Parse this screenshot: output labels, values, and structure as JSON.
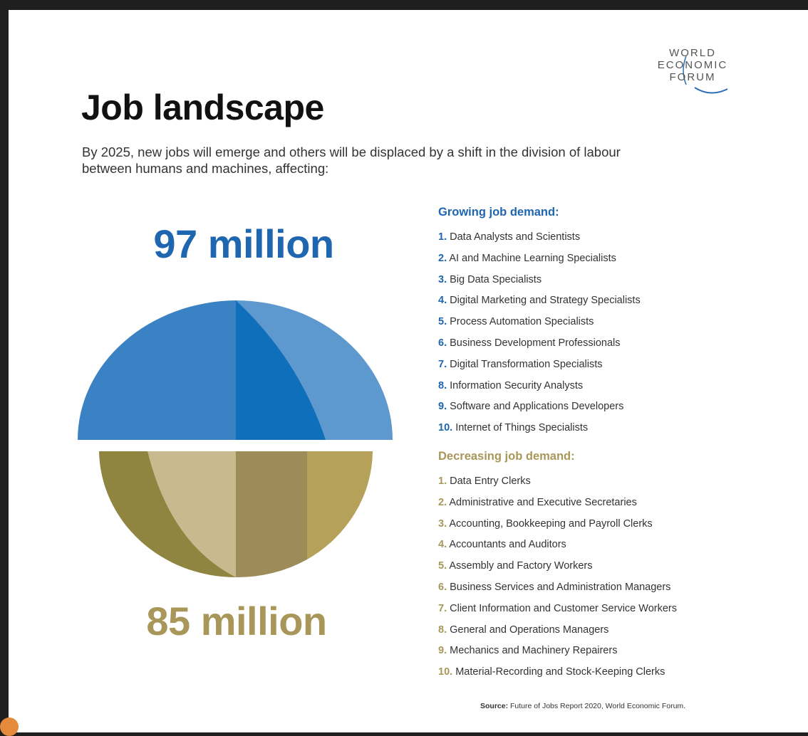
{
  "logo": {
    "lines": [
      "WORLD",
      "ECONOMIC",
      "FORUM"
    ],
    "colors": {
      "text": "#555555",
      "arc": "#2a6db5"
    }
  },
  "title": "Job landscape",
  "subtitle": "By 2025, new jobs will emerge and others will be displaced by a shift in the division of labour between humans and machines, affecting:",
  "figures": {
    "growing": "97 million",
    "decreasing": "85 million"
  },
  "colors": {
    "growing": "#1f66b0",
    "decreasing": "#a9975a",
    "blue_main": "#3b82c4",
    "blue_light": "#5d98cf",
    "blue_dark": "#0f6fba",
    "gold_dark": "#8f8440",
    "gold_light": "#c8b98f",
    "gold_mid": "#9d8b5a",
    "gold_bright": "#b5a15a"
  },
  "growing": {
    "heading": "Growing job demand:",
    "items": [
      {
        "num": "1.",
        "label": "Data Analysts and Scientists"
      },
      {
        "num": "2.",
        "label": "AI and Machine Learning Specialists"
      },
      {
        "num": "3.",
        "label": "Big Data Specialists"
      },
      {
        "num": "4.",
        "label": "Digital Marketing and Strategy Specialists"
      },
      {
        "num": "5.",
        "label": "Process Automation Specialists"
      },
      {
        "num": "6.",
        "label": "Business Development Professionals"
      },
      {
        "num": "7.",
        "label": "Digital Transformation Specialists"
      },
      {
        "num": "8.",
        "label": "Information Security Analysts"
      },
      {
        "num": "9.",
        "label": "Software and Applications Developers"
      },
      {
        "num": "10.",
        "label": "Internet of Things Specialists"
      }
    ]
  },
  "decreasing": {
    "heading": "Decreasing job demand:",
    "items": [
      {
        "num": "1.",
        "label": "Data Entry Clerks"
      },
      {
        "num": "2.",
        "label": "Administrative and Executive Secretaries"
      },
      {
        "num": "3.",
        "label": "Accounting, Bookkeeping and Payroll Clerks"
      },
      {
        "num": "4.",
        "label": "Accountants and Auditors"
      },
      {
        "num": "5.",
        "label": "Assembly and Factory Workers"
      },
      {
        "num": "6.",
        "label": "Business Services and Administration Managers"
      },
      {
        "num": "7.",
        "label": "Client Information and Customer Service Workers"
      },
      {
        "num": "8.",
        "label": "General and Operations Managers"
      },
      {
        "num": "9.",
        "label": "Mechanics and Machinery Repairers"
      },
      {
        "num": "10.",
        "label": "Material-Recording and Stock-Keeping Clerks"
      }
    ]
  },
  "source": {
    "label": "Source:",
    "text": " Future of Jobs Report 2020, World Economic Forum."
  }
}
